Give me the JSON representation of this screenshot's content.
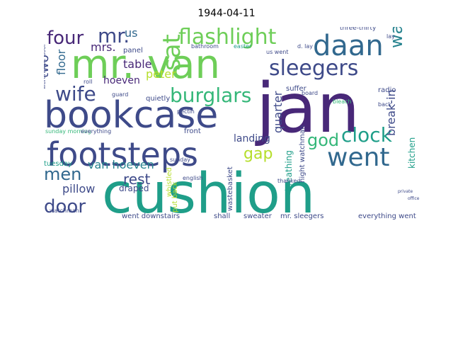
{
  "title": "1944-04-11",
  "colors": {
    "purple": "#482878",
    "indigo": "#3e4a89",
    "blue": "#31688e",
    "teal": "#26828e",
    "cyan": "#1f9e89",
    "green": "#35b779",
    "lime": "#6ece58",
    "yellow": "#b5de2b"
  },
  "words": [
    {
      "text": "jan",
      "color": "purple"
    },
    {
      "text": "cushion",
      "color": "cyan"
    },
    {
      "text": "bookcase",
      "color": "indigo"
    },
    {
      "text": "mr. van",
      "color": "lime"
    },
    {
      "text": "footsteps",
      "color": "indigo"
    },
    {
      "text": "daan",
      "color": "blue"
    },
    {
      "text": "went",
      "color": "blue"
    },
    {
      "text": "sleegers",
      "color": "indigo"
    },
    {
      "text": "flashlight",
      "color": "lime"
    },
    {
      "text": "burglars",
      "color": "green"
    },
    {
      "text": "sat",
      "color": "lime"
    },
    {
      "text": "four",
      "color": "purple"
    },
    {
      "text": "mr.",
      "color": "indigo"
    },
    {
      "text": "us",
      "color": "blue"
    },
    {
      "text": "wife",
      "color": "indigo"
    },
    {
      "text": "clock",
      "color": "cyan"
    },
    {
      "text": "god",
      "color": "green"
    },
    {
      "text": "warehouse",
      "color": "teal"
    },
    {
      "text": "door",
      "color": "indigo"
    },
    {
      "text": "men",
      "color": "blue"
    },
    {
      "text": "gap",
      "color": "yellow"
    },
    {
      "text": "rest",
      "color": "indigo"
    },
    {
      "text": "van hoeven",
      "color": "teal"
    },
    {
      "text": "pillow",
      "color": "indigo"
    },
    {
      "text": "two",
      "color": "indigo"
    },
    {
      "text": "floor",
      "color": "blue"
    },
    {
      "text": "table",
      "color": "purple"
    },
    {
      "text": "mrs.",
      "color": "purple"
    },
    {
      "text": "peter",
      "color": "yellow"
    },
    {
      "text": "hoeven",
      "color": "purple"
    },
    {
      "text": "break-in",
      "color": "indigo"
    },
    {
      "text": "quarter",
      "color": "indigo"
    },
    {
      "text": "kitchen",
      "color": "cyan"
    },
    {
      "text": "landing",
      "color": "indigo"
    },
    {
      "text": "tuesday",
      "color": "cyan"
    },
    {
      "text": "draped",
      "color": "indigo"
    },
    {
      "text": "sweater",
      "color": "indigo"
    },
    {
      "text": "mr. sleegers",
      "color": "indigo"
    },
    {
      "text": "everything went",
      "color": "indigo"
    },
    {
      "text": "went downstairs",
      "color": "indigo"
    },
    {
      "text": "shall",
      "color": "indigo"
    },
    {
      "text": "wastebasket",
      "color": "indigo"
    },
    {
      "text": "put back",
      "color": "yellow"
    },
    {
      "text": "whistled",
      "color": "yellow"
    },
    {
      "text": "breathing",
      "color": "cyan"
    },
    {
      "text": "night watchman",
      "color": "indigo"
    },
    {
      "text": "panel",
      "color": "indigo"
    },
    {
      "text": "three-thirty",
      "color": "indigo"
    },
    {
      "text": "suffer",
      "color": "indigo"
    },
    {
      "text": "radio",
      "color": "indigo"
    },
    {
      "text": "bathroom",
      "color": "indigo"
    },
    {
      "text": "easter",
      "color": "cyan"
    },
    {
      "text": "us went",
      "color": "indigo"
    },
    {
      "text": "quietly",
      "color": "indigo"
    },
    {
      "text": "front",
      "color": "indigo"
    },
    {
      "text": "sunday",
      "color": "indigo"
    },
    {
      "text": "guard",
      "color": "indigo"
    },
    {
      "text": "roll",
      "color": "indigo"
    },
    {
      "text": "thanked",
      "color": "indigo"
    },
    {
      "text": "back",
      "color": "indigo"
    },
    {
      "text": "board",
      "color": "indigo"
    },
    {
      "text": "lay",
      "color": "indigo"
    },
    {
      "text": "warehouse door",
      "color": "indigo"
    },
    {
      "text": "sunday morning",
      "color": "green"
    },
    {
      "text": "everything",
      "color": "indigo"
    },
    {
      "text": "watchman",
      "color": "indigo"
    },
    {
      "text": "d. lay",
      "color": "indigo"
    },
    {
      "text": "bleach",
      "color": "green"
    },
    {
      "text": "pectin",
      "color": "indigo"
    },
    {
      "text": "english",
      "color": "indigo"
    },
    {
      "text": "private",
      "color": "indigo"
    },
    {
      "text": "office",
      "color": "indigo"
    }
  ]
}
